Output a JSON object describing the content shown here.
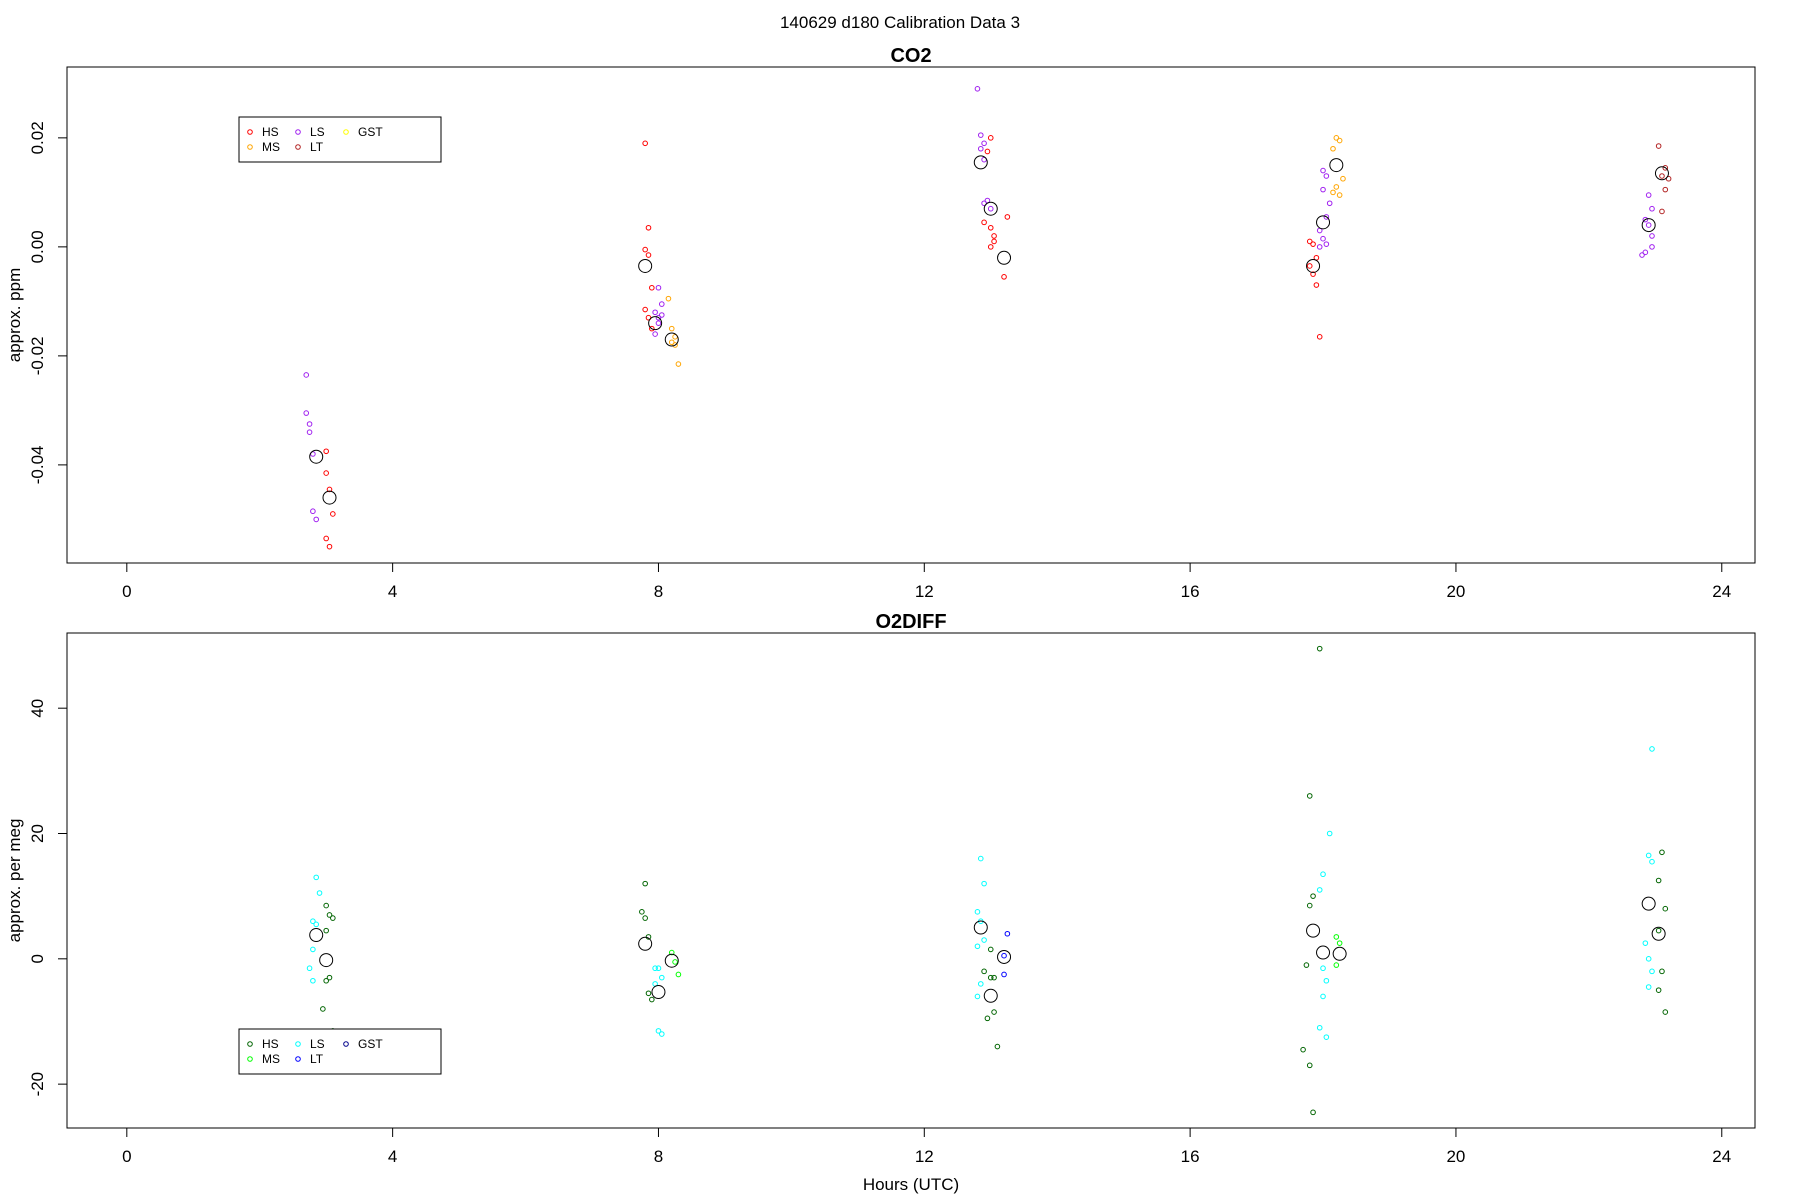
{
  "figure_title": "140629   d180   Calibration Data 3",
  "chart_data": [
    {
      "type": "scatter",
      "title": "CO2",
      "xlabel": "",
      "ylabel": "approx. ppm",
      "xlim": [
        -0.9,
        24.5
      ],
      "ylim": [
        -0.058,
        0.033
      ],
      "x_ticks": [
        0,
        4,
        8,
        12,
        16,
        20,
        24
      ],
      "y_ticks": [
        0.02,
        0.0,
        -0.02,
        -0.04
      ],
      "y_tick_labels": [
        "0.02",
        "0.00",
        "-0.02",
        "-0.04"
      ],
      "grid": false,
      "legend_position": "top-left",
      "legend": [
        {
          "name": "HS",
          "color": "#ff0000"
        },
        {
          "name": "MS",
          "color": "#ffa500"
        },
        {
          "name": "LS",
          "color": "#a020f0"
        },
        {
          "name": "LT",
          "color": "#b22222"
        },
        {
          "name": "GST",
          "color": "#ffff00"
        }
      ],
      "series": [
        {
          "name": "HS",
          "color": "#ff0000",
          "points": [
            [
              3.0,
              -0.0415
            ],
            [
              3.05,
              -0.0445
            ],
            [
              3.1,
              -0.049
            ],
            [
              3.0,
              -0.0535
            ],
            [
              3.05,
              -0.055
            ],
            [
              3.0,
              -0.0375
            ],
            [
              7.8,
              0.019
            ],
            [
              7.85,
              0.0035
            ],
            [
              7.8,
              -0.0005
            ],
            [
              7.85,
              -0.0015
            ],
            [
              7.9,
              -0.0075
            ],
            [
              7.8,
              -0.0115
            ],
            [
              7.85,
              -0.013
            ],
            [
              7.9,
              -0.015
            ],
            [
              13.0,
              0.02
            ],
            [
              12.95,
              0.0175
            ],
            [
              13.0,
              0.0035
            ],
            [
              13.05,
              0.002
            ],
            [
              13.0,
              0.0
            ],
            [
              13.05,
              0.001
            ],
            [
              13.25,
              0.0055
            ],
            [
              13.2,
              -0.0055
            ],
            [
              12.9,
              0.0045
            ],
            [
              17.8,
              0.001
            ],
            [
              17.85,
              0.0005
            ],
            [
              17.9,
              -0.002
            ],
            [
              17.8,
              -0.0035
            ],
            [
              17.85,
              -0.005
            ],
            [
              17.9,
              -0.007
            ],
            [
              17.95,
              -0.0165
            ]
          ]
        },
        {
          "name": "MS",
          "color": "#ffa500",
          "points": [
            [
              8.15,
              -0.0095
            ],
            [
              8.2,
              -0.015
            ],
            [
              8.25,
              -0.0165
            ],
            [
              8.2,
              -0.0175
            ],
            [
              8.25,
              -0.018
            ],
            [
              8.3,
              -0.0215
            ],
            [
              18.2,
              0.02
            ],
            [
              18.25,
              0.0195
            ],
            [
              18.15,
              0.018
            ],
            [
              18.3,
              0.0125
            ],
            [
              18.2,
              0.011
            ],
            [
              18.25,
              0.0095
            ],
            [
              18.15,
              0.01
            ]
          ]
        },
        {
          "name": "LS",
          "color": "#a020f0",
          "points": [
            [
              2.7,
              -0.0235
            ],
            [
              2.7,
              -0.0305
            ],
            [
              2.75,
              -0.0325
            ],
            [
              2.75,
              -0.034
            ],
            [
              2.8,
              -0.038
            ],
            [
              2.8,
              -0.0485
            ],
            [
              2.85,
              -0.05
            ],
            [
              8.0,
              -0.0075
            ],
            [
              8.05,
              -0.0105
            ],
            [
              7.95,
              -0.012
            ],
            [
              8.0,
              -0.013
            ],
            [
              8.05,
              -0.0125
            ],
            [
              7.95,
              -0.016
            ],
            [
              8.0,
              -0.014
            ],
            [
              12.8,
              0.029
            ],
            [
              12.85,
              0.0205
            ],
            [
              12.9,
              0.019
            ],
            [
              12.85,
              0.018
            ],
            [
              12.9,
              0.016
            ],
            [
              12.95,
              0.0085
            ],
            [
              12.9,
              0.008
            ],
            [
              13.0,
              0.007
            ],
            [
              18.0,
              0.014
            ],
            [
              18.05,
              0.013
            ],
            [
              18.0,
              0.0105
            ],
            [
              18.1,
              0.008
            ],
            [
              18.05,
              0.0055
            ],
            [
              17.95,
              0.003
            ],
            [
              18.0,
              0.0015
            ],
            [
              18.05,
              0.0005
            ],
            [
              17.95,
              0.0
            ],
            [
              22.9,
              0.0095
            ],
            [
              22.95,
              0.007
            ],
            [
              22.85,
              0.005
            ],
            [
              22.9,
              0.004
            ],
            [
              22.95,
              0.002
            ],
            [
              22.85,
              -0.001
            ],
            [
              22.8,
              -0.0015
            ],
            [
              22.95,
              0.0
            ]
          ]
        },
        {
          "name": "LT",
          "color": "#b22222",
          "points": [
            [
              23.05,
              0.0185
            ],
            [
              23.15,
              0.0145
            ],
            [
              23.1,
              0.013
            ],
            [
              23.2,
              0.0125
            ],
            [
              23.15,
              0.0105
            ],
            [
              23.1,
              0.0065
            ]
          ]
        },
        {
          "name": "GST",
          "color": "#ffff00",
          "points": []
        }
      ],
      "means": [
        [
          2.85,
          -0.0385
        ],
        [
          3.05,
          -0.046
        ],
        [
          7.8,
          -0.0035
        ],
        [
          7.95,
          -0.014
        ],
        [
          8.2,
          -0.017
        ],
        [
          12.85,
          0.0155
        ],
        [
          13.0,
          0.007
        ],
        [
          13.2,
          -0.002
        ],
        [
          17.85,
          -0.0035
        ],
        [
          18.0,
          0.0045
        ],
        [
          18.2,
          0.015
        ],
        [
          22.9,
          0.004
        ],
        [
          23.1,
          0.0135
        ]
      ]
    },
    {
      "type": "scatter",
      "title": "O2DIFF",
      "xlabel": "Hours (UTC)",
      "ylabel": "approx. per meg",
      "xlim": [
        -0.9,
        24.5
      ],
      "ylim": [
        -27,
        52
      ],
      "x_ticks": [
        0,
        4,
        8,
        12,
        16,
        20,
        24
      ],
      "y_ticks": [
        40,
        20,
        0,
        -20
      ],
      "y_tick_labels": [
        "40",
        "20",
        "0",
        "-20"
      ],
      "grid": false,
      "legend_position": "bottom-left",
      "legend": [
        {
          "name": "HS",
          "color": "#006400"
        },
        {
          "name": "MS",
          "color": "#00ff00"
        },
        {
          "name": "LS",
          "color": "#00ffff"
        },
        {
          "name": "LT",
          "color": "#0000ff"
        },
        {
          "name": "GST",
          "color": "#00008b"
        }
      ],
      "series": [
        {
          "name": "HS",
          "color": "#006400",
          "points": [
            [
              3.0,
              8.5
            ],
            [
              3.05,
              7.0
            ],
            [
              3.1,
              6.5
            ],
            [
              3.0,
              4.5
            ],
            [
              3.0,
              -3.5
            ],
            [
              3.05,
              -3.0
            ],
            [
              2.95,
              -8.0
            ],
            [
              3.1,
              -11.5
            ],
            [
              7.8,
              12.0
            ],
            [
              7.75,
              7.5
            ],
            [
              7.8,
              6.5
            ],
            [
              7.85,
              3.5
            ],
            [
              7.9,
              -6.5
            ],
            [
              7.85,
              -5.5
            ],
            [
              12.9,
              -2.0
            ],
            [
              13.0,
              -3.0
            ],
            [
              13.05,
              -3.0
            ],
            [
              12.95,
              -9.5
            ],
            [
              13.05,
              -8.5
            ],
            [
              13.1,
              -14.0
            ],
            [
              13.0,
              1.5
            ],
            [
              17.8,
              26.0
            ],
            [
              17.85,
              10.0
            ],
            [
              17.8,
              8.5
            ],
            [
              17.75,
              -1.0
            ],
            [
              17.7,
              -14.5
            ],
            [
              17.8,
              -17.0
            ],
            [
              17.85,
              -24.5
            ],
            [
              17.95,
              49.5
            ],
            [
              23.1,
              17.0
            ],
            [
              23.05,
              12.5
            ],
            [
              23.15,
              8.0
            ],
            [
              23.05,
              4.5
            ],
            [
              23.1,
              -2.0
            ],
            [
              23.05,
              -5.0
            ],
            [
              23.15,
              -8.5
            ]
          ]
        },
        {
          "name": "MS",
          "color": "#00ff00",
          "points": [
            [
              8.2,
              1.0
            ],
            [
              8.25,
              -0.5
            ],
            [
              8.3,
              -2.5
            ],
            [
              18.2,
              3.5
            ],
            [
              18.25,
              2.5
            ],
            [
              18.2,
              -1.0
            ]
          ]
        },
        {
          "name": "LS",
          "color": "#00ffff",
          "points": [
            [
              2.85,
              13.0
            ],
            [
              2.9,
              10.5
            ],
            [
              2.8,
              6.0
            ],
            [
              2.85,
              5.5
            ],
            [
              2.8,
              1.5
            ],
            [
              2.75,
              -1.5
            ],
            [
              2.8,
              -3.5
            ],
            [
              7.95,
              -1.5
            ],
            [
              8.0,
              -1.5
            ],
            [
              8.05,
              -3.0
            ],
            [
              7.95,
              -4.0
            ],
            [
              8.0,
              -11.5
            ],
            [
              8.05,
              -12.0
            ],
            [
              12.85,
              16.0
            ],
            [
              12.9,
              12.0
            ],
            [
              12.8,
              7.5
            ],
            [
              12.85,
              6.0
            ],
            [
              12.9,
              3.0
            ],
            [
              12.8,
              2.0
            ],
            [
              12.85,
              -4.0
            ],
            [
              12.8,
              -6.0
            ],
            [
              18.1,
              20.0
            ],
            [
              18.0,
              13.5
            ],
            [
              17.95,
              11.0
            ],
            [
              18.0,
              -1.5
            ],
            [
              18.05,
              -3.5
            ],
            [
              18.0,
              -6.0
            ],
            [
              17.95,
              -11.0
            ],
            [
              18.05,
              -12.5
            ],
            [
              22.95,
              33.5
            ],
            [
              22.9,
              16.5
            ],
            [
              22.95,
              15.5
            ],
            [
              22.85,
              2.5
            ],
            [
              22.9,
              0.0
            ],
            [
              22.95,
              -2.0
            ],
            [
              22.9,
              -4.5
            ]
          ]
        },
        {
          "name": "LT",
          "color": "#0000ff",
          "points": [
            [
              13.25,
              4.0
            ],
            [
              13.2,
              0.5
            ],
            [
              13.2,
              -2.5
            ]
          ]
        },
        {
          "name": "GST",
          "color": "#00008b",
          "points": []
        }
      ],
      "means": [
        [
          2.85,
          3.8
        ],
        [
          3.0,
          -0.2
        ],
        [
          7.8,
          2.4
        ],
        [
          8.0,
          -5.3
        ],
        [
          8.2,
          -0.3
        ],
        [
          12.85,
          5.0
        ],
        [
          13.0,
          -5.9
        ],
        [
          13.2,
          0.3
        ],
        [
          17.85,
          4.5
        ],
        [
          18.0,
          1.0
        ],
        [
          18.25,
          0.8
        ],
        [
          22.9,
          8.8
        ],
        [
          23.05,
          4.0
        ]
      ]
    }
  ]
}
